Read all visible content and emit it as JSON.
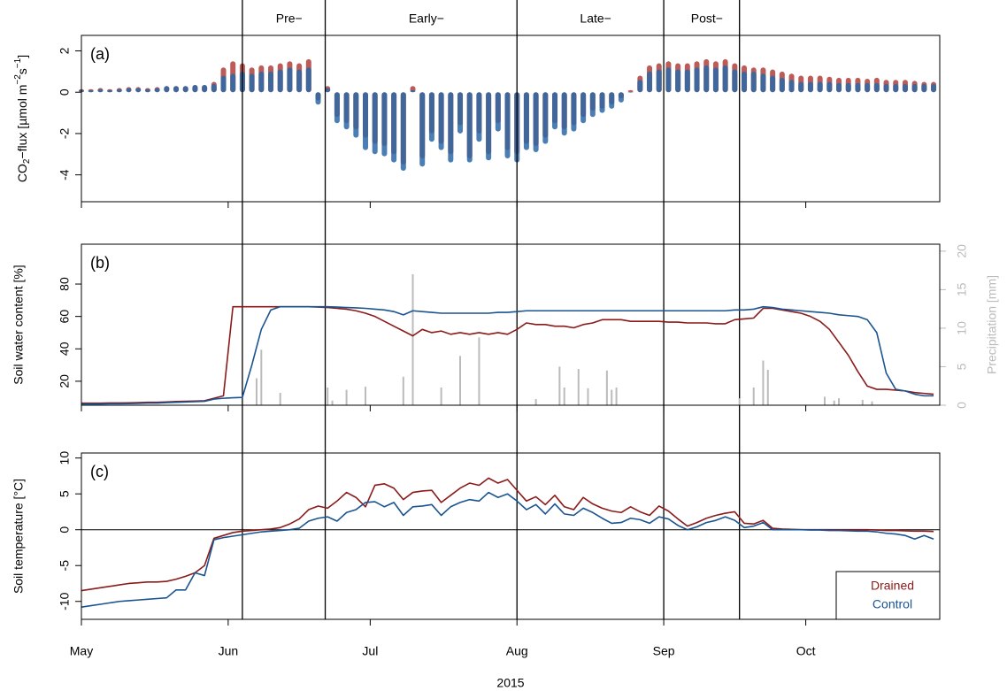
{
  "chart_data": [
    {
      "type": "bar",
      "panel_label": "(a)",
      "ylabel": [
        "CO",
        "2",
        "−flux [µmol m",
        "−2",
        "s",
        "−1",
        "]"
      ],
      "phase_boundaries": [
        34,
        51.5,
        92,
        123,
        139
      ],
      "phase_labels": [
        "Pre−",
        "Early−",
        "Late−",
        "Post−"
      ],
      "xlim": [
        0,
        181.3
      ],
      "xticks": [
        0,
        31,
        61,
        92,
        123,
        153
      ],
      "ylim": [
        -5.3,
        2.75
      ],
      "yticks": [
        -4,
        -2,
        0,
        2
      ],
      "x": [
        0,
        2,
        4,
        6,
        8,
        10,
        12,
        14,
        16,
        18,
        20,
        22,
        24,
        26,
        28,
        30,
        32,
        34,
        36,
        38,
        40,
        42,
        44,
        46,
        48,
        50,
        52,
        54,
        56,
        58,
        60,
        62,
        64,
        66,
        68,
        70,
        72,
        74,
        76,
        78,
        80,
        82,
        84,
        86,
        88,
        90,
        92,
        94,
        96,
        98,
        100,
        102,
        104,
        106,
        108,
        110,
        112,
        114,
        116,
        118,
        120,
        122,
        124,
        126,
        128,
        130,
        132,
        134,
        136,
        138,
        140,
        142,
        144,
        146,
        148,
        150,
        152,
        154,
        156,
        158,
        160,
        162,
        164,
        166,
        168,
        170,
        172,
        174,
        176,
        178,
        180
      ],
      "series": [
        {
          "color": "#b0403c",
          "values": [
            0.15,
            0.15,
            0.2,
            0.15,
            0.2,
            0.25,
            0.25,
            0.2,
            0.25,
            0.3,
            0.3,
            0.3,
            0.35,
            0.35,
            0.5,
            1.2,
            1.5,
            1.4,
            1.2,
            1.3,
            1.3,
            1.4,
            1.5,
            1.4,
            1.6,
            -0.4,
            0.3,
            -1.2,
            -1.5,
            -1.8,
            -2.2,
            -2.5,
            -2.6,
            -3.0,
            -3.5,
            0.3,
            -3.2,
            -2.0,
            -2.5,
            -3.0,
            -1.6,
            -3.2,
            -2.0,
            -3.0,
            -1.5,
            -2.8,
            -3.0,
            -2.5,
            -2.6,
            -2.2,
            -1.5,
            -1.8,
            -1.6,
            -1.2,
            -0.9,
            -0.8,
            -0.6,
            -0.3,
            0.1,
            0.8,
            1.3,
            1.4,
            1.5,
            1.4,
            1.4,
            1.5,
            1.6,
            1.5,
            1.6,
            1.4,
            1.3,
            1.2,
            1.2,
            1.1,
            1.0,
            0.9,
            0.8,
            0.8,
            0.8,
            0.75,
            0.7,
            0.7,
            0.7,
            0.65,
            0.7,
            0.6,
            0.6,
            0.6,
            0.55,
            0.5,
            0.5
          ]
        },
        {
          "color": "#2c67a6",
          "values": [
            0.1,
            0.1,
            0.15,
            0.1,
            0.15,
            0.2,
            0.2,
            0.15,
            0.2,
            0.3,
            0.3,
            0.3,
            0.35,
            0.35,
            0.4,
            0.8,
            0.9,
            1.0,
            0.9,
            1.0,
            1.0,
            1.1,
            1.2,
            1.1,
            1.2,
            -0.6,
            0.2,
            -1.5,
            -1.8,
            -2.2,
            -2.8,
            -3.0,
            -3.1,
            -3.4,
            -3.8,
            0.1,
            -3.6,
            -2.4,
            -2.8,
            -3.4,
            -2.0,
            -3.4,
            -2.4,
            -3.3,
            -1.9,
            -3.2,
            -3.4,
            -2.8,
            -2.9,
            -2.5,
            -1.8,
            -2.1,
            -1.9,
            -1.5,
            -1.2,
            -1.0,
            -0.8,
            -0.5,
            0.0,
            0.6,
            1.0,
            1.1,
            1.2,
            1.1,
            1.1,
            1.2,
            1.3,
            1.2,
            1.3,
            1.1,
            1.0,
            1.0,
            0.9,
            0.8,
            0.7,
            0.6,
            0.5,
            0.5,
            0.5,
            0.5,
            0.45,
            0.45,
            0.45,
            0.45,
            0.45,
            0.4,
            0.4,
            0.4,
            0.4,
            0.4,
            0.4
          ]
        }
      ]
    },
    {
      "type": "line",
      "panel_label": "(b)",
      "ylabel": "Soil water content [%]",
      "y2label": "Precipitation [mm]",
      "xlim": [
        0,
        181.3
      ],
      "xticks": [
        0,
        31,
        61,
        92,
        123,
        153
      ],
      "ylim": [
        5.2,
        104.6
      ],
      "yticks": [
        20,
        40,
        60,
        80
      ],
      "y2lim": [
        0,
        20.9
      ],
      "y2ticks": [
        0,
        5,
        10,
        15,
        20
      ],
      "y2color": "#bbbbbb",
      "x": [
        0,
        2,
        4,
        6,
        8,
        10,
        12,
        14,
        16,
        18,
        20,
        22,
        24,
        26,
        28,
        30,
        32,
        34,
        36,
        38,
        40,
        42,
        44,
        46,
        48,
        50,
        52,
        54,
        56,
        58,
        60,
        62,
        64,
        66,
        68,
        70,
        72,
        74,
        76,
        78,
        80,
        82,
        84,
        86,
        88,
        90,
        92,
        94,
        96,
        98,
        100,
        102,
        104,
        106,
        108,
        110,
        112,
        114,
        116,
        118,
        120,
        122,
        124,
        126,
        128,
        130,
        132,
        134,
        136,
        138,
        140,
        142,
        144,
        146,
        148,
        150,
        152,
        154,
        156,
        158,
        160,
        162,
        164,
        166,
        168,
        170,
        172,
        174,
        176,
        178,
        180
      ],
      "series": [
        {
          "type": "bar",
          "axis": "y2",
          "color": "#bbbbbb",
          "x": [
            37,
            38,
            42,
            52,
            53,
            56,
            60,
            68,
            70,
            76,
            80,
            84,
            96,
            101,
            102,
            105,
            107,
            111,
            112,
            113,
            139,
            142,
            144,
            145,
            157,
            159,
            160,
            165,
            167
          ],
          "values": [
            3.5,
            7.2,
            1.6,
            2.3,
            0.6,
            2.0,
            2.4,
            3.7,
            17.0,
            2.3,
            6.4,
            8.8,
            0.8,
            5.0,
            2.3,
            4.7,
            2.2,
            4.5,
            2.0,
            2.3,
            0.9,
            2.3,
            5.8,
            4.6,
            1.1,
            0.6,
            0.9,
            0.7,
            0.5
          ]
        },
        {
          "color": "#8b1a1a",
          "values": [
            6.5,
            6.5,
            6.5,
            6.6,
            6.6,
            6.7,
            6.8,
            7.0,
            7.0,
            7.2,
            7.5,
            7.6,
            7.8,
            8.0,
            9.5,
            11,
            66,
            66,
            66,
            66,
            66,
            66,
            66,
            66,
            66,
            65.8,
            65.5,
            65,
            64.5,
            63.5,
            62,
            60,
            57,
            54,
            51,
            48,
            52,
            50,
            51,
            49,
            50,
            49,
            50,
            49,
            50,
            49,
            52,
            56,
            55,
            55,
            54,
            54,
            53,
            55,
            56,
            58,
            58,
            58,
            57,
            57,
            57,
            57,
            56.5,
            56.5,
            56,
            56,
            56,
            55.5,
            55.5,
            58,
            58.5,
            59,
            65,
            65,
            64,
            63,
            62,
            60,
            57,
            52,
            44,
            36,
            26,
            17,
            15,
            15,
            14.5,
            14,
            13,
            12.5,
            12
          ]
        },
        {
          "color": "#1a5490",
          "values": [
            6,
            6,
            6,
            6.1,
            6.1,
            6.2,
            6.3,
            6.5,
            6.5,
            6.8,
            7,
            7.2,
            7.4,
            7.6,
            9,
            9.5,
            9.8,
            10,
            30,
            52,
            64,
            66,
            66,
            66,
            66,
            66,
            66,
            65.8,
            65.5,
            65.3,
            65,
            64.5,
            64,
            63,
            61,
            63.5,
            63,
            62.5,
            62,
            62,
            62,
            62,
            62,
            62,
            62.5,
            62.5,
            63,
            63.5,
            63.5,
            63.5,
            63.5,
            63.5,
            63.5,
            63.5,
            63.5,
            63.5,
            63.5,
            63.5,
            63.5,
            63.5,
            63.5,
            63.5,
            63.5,
            63.5,
            63.5,
            63.5,
            63.5,
            63.5,
            63.5,
            64,
            64,
            64.5,
            66,
            65.5,
            64.5,
            64,
            63.5,
            63,
            62.5,
            62,
            61,
            60.5,
            60,
            58,
            50,
            25,
            15,
            14,
            12,
            11,
            11
          ]
        }
      ]
    },
    {
      "type": "line",
      "panel_label": "(c)",
      "ylabel": "Soil temperature [°C]",
      "xlabel": "2015",
      "xlim": [
        0,
        181.3
      ],
      "xticks": [
        {
          "value": 0,
          "label": "May"
        },
        {
          "value": 31,
          "label": "Jun"
        },
        {
          "value": 61,
          "label": "Jul"
        },
        {
          "value": 92,
          "label": "Aug"
        },
        {
          "value": 123,
          "label": "Sep"
        },
        {
          "value": 153,
          "label": "Oct"
        }
      ],
      "ylim": [
        -12.5,
        10.7
      ],
      "yticks": [
        -10,
        -5,
        0,
        5,
        10
      ],
      "hline": 0,
      "legend": "bottom-right",
      "x": [
        0,
        2,
        4,
        6,
        8,
        10,
        12,
        14,
        16,
        18,
        20,
        22,
        24,
        26,
        28,
        30,
        32,
        34,
        36,
        38,
        40,
        42,
        44,
        46,
        48,
        50,
        52,
        54,
        56,
        58,
        60,
        62,
        64,
        66,
        68,
        70,
        72,
        74,
        76,
        78,
        80,
        82,
        84,
        86,
        88,
        90,
        92,
        94,
        96,
        98,
        100,
        102,
        104,
        106,
        108,
        110,
        112,
        114,
        116,
        118,
        120,
        122,
        124,
        126,
        128,
        130,
        132,
        134,
        136,
        138,
        140,
        142,
        144,
        146,
        148,
        150,
        152,
        154,
        156,
        158,
        160,
        162,
        164,
        166,
        168,
        170,
        172,
        174,
        176,
        178,
        180
      ],
      "series": [
        {
          "name": "Drained",
          "color": "#8b1a1a",
          "values": [
            -8.5,
            -8.3,
            -8.1,
            -7.9,
            -7.7,
            -7.5,
            -7.4,
            -7.3,
            -7.3,
            -7.2,
            -6.9,
            -6.5,
            -6.0,
            -5.0,
            -1.2,
            -0.8,
            -0.4,
            -0.2,
            -0.1,
            0,
            0.1,
            0.3,
            0.8,
            1.5,
            2.8,
            3.3,
            3.0,
            4.0,
            5.2,
            4.5,
            3.2,
            6.2,
            6.4,
            5.8,
            4.2,
            5.2,
            5.4,
            5.5,
            3.8,
            4.8,
            5.8,
            6.5,
            6.2,
            7.2,
            6.5,
            7.0,
            5.5,
            4.0,
            4.6,
            3.5,
            4.8,
            3.2,
            2.8,
            4.5,
            3.6,
            3.0,
            2.6,
            2.4,
            3.2,
            2.5,
            2.0,
            3.3,
            2.6,
            1.5,
            0.5,
            1.0,
            1.6,
            2.0,
            2.3,
            2.5,
            0.9,
            0.8,
            1.3,
            0.2,
            0.1,
            0.05,
            0,
            0,
            0,
            0,
            0,
            0,
            0,
            0,
            -0.05,
            -0.1,
            -0.1,
            -0.15,
            -0.2,
            -0.2,
            -0.25
          ]
        },
        {
          "name": "Control",
          "color": "#1a5490",
          "values": [
            -10.8,
            -10.6,
            -10.4,
            -10.2,
            -10.0,
            -9.9,
            -9.8,
            -9.7,
            -9.6,
            -9.5,
            -8.4,
            -8.4,
            -6.0,
            -6.4,
            -1.4,
            -1.1,
            -0.9,
            -0.7,
            -0.5,
            -0.3,
            -0.2,
            -0.1,
            0,
            0.2,
            1.2,
            1.6,
            1.8,
            1.2,
            2.4,
            2.8,
            3.8,
            3.9,
            3.2,
            3.8,
            2.0,
            3.2,
            3.3,
            3.5,
            2.0,
            3.2,
            3.8,
            4.2,
            4.0,
            5.2,
            4.5,
            5.0,
            4.0,
            2.8,
            3.5,
            2.2,
            3.6,
            2.2,
            2.0,
            3.0,
            2.4,
            1.6,
            0.9,
            1.0,
            1.6,
            1.4,
            0.9,
            1.8,
            1.5,
            0.6,
            0.0,
            0.4,
            1.0,
            1.3,
            1.8,
            1.3,
            0.3,
            0.5,
            1.0,
            0,
            0,
            0,
            0,
            -0.05,
            -0.05,
            -0.1,
            -0.1,
            -0.15,
            -0.2,
            -0.2,
            -0.3,
            -0.5,
            -0.6,
            -0.8,
            -1.3,
            -0.8,
            -1.3
          ]
        }
      ]
    }
  ]
}
